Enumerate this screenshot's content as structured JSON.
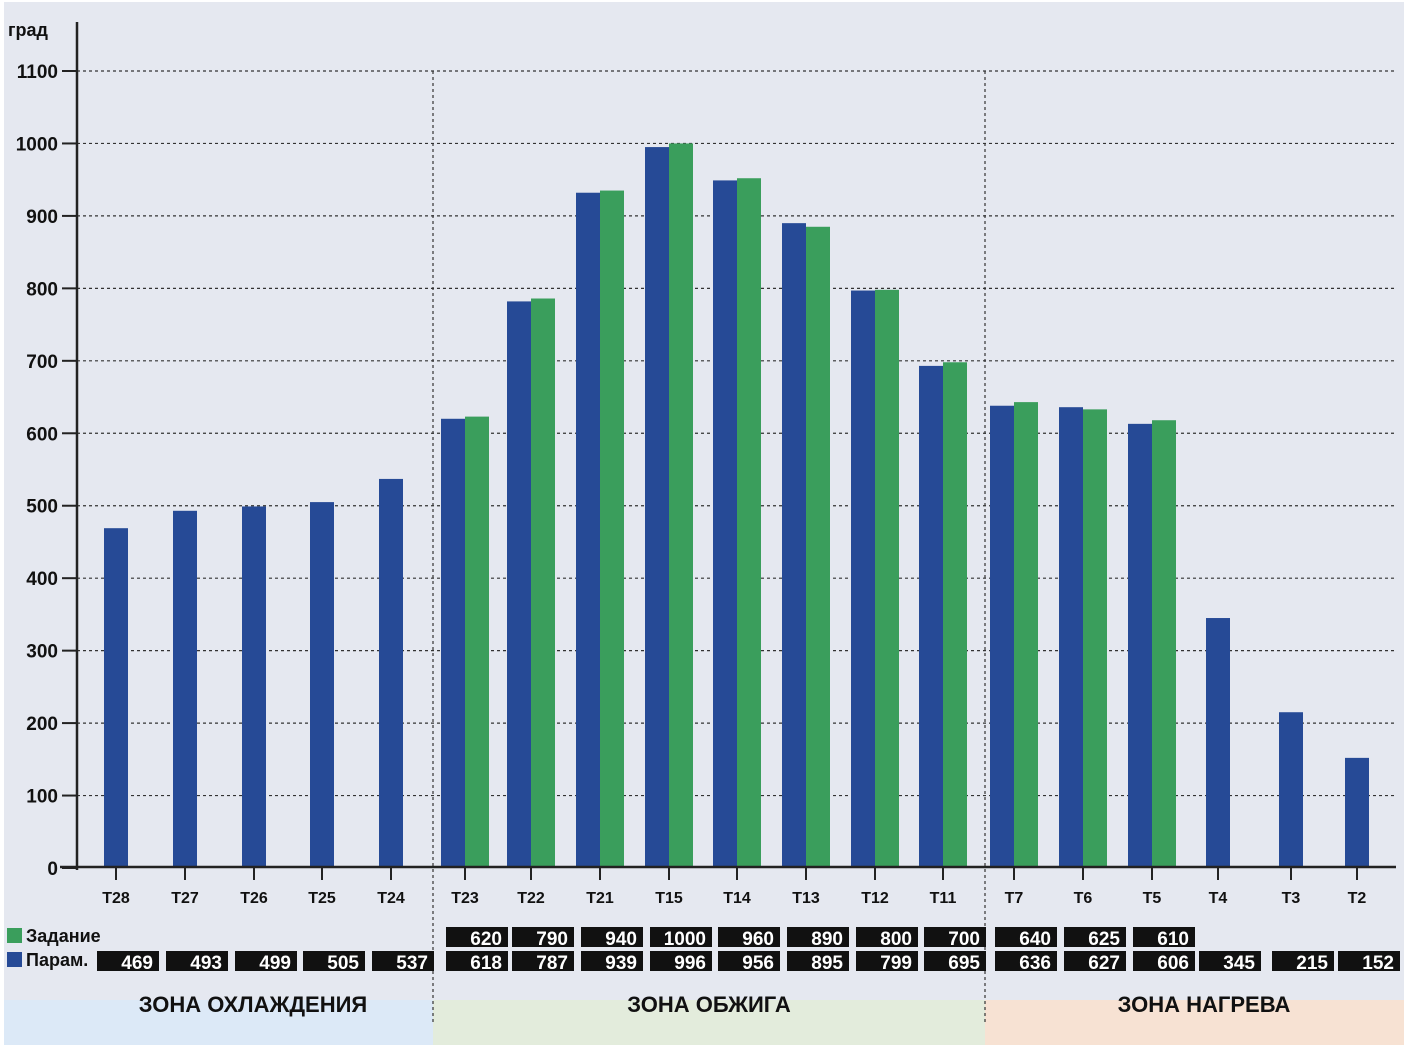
{
  "chart_data": {
    "type": "bar",
    "ylabel": "град",
    "ylim": [
      0,
      1100
    ],
    "yticks": [
      0,
      100,
      200,
      300,
      400,
      500,
      600,
      700,
      800,
      900,
      1000,
      1100
    ],
    "grid": true,
    "categories": [
      "T28",
      "T27",
      "T26",
      "T25",
      "T24",
      "T23",
      "T22",
      "T21",
      "T15",
      "T14",
      "T13",
      "T12",
      "T11",
      "T7",
      "T6",
      "T5",
      "T4",
      "T3",
      "T2"
    ],
    "series": [
      {
        "name": "Парам.",
        "color": "#264a96",
        "values": [
          469,
          493,
          499,
          505,
          537,
          618,
          787,
          939,
          996,
          956,
          895,
          799,
          695,
          636,
          627,
          606,
          345,
          215,
          152
        ],
        "bar_values": [
          469,
          493,
          499,
          505,
          537,
          620,
          782,
          932,
          995,
          949,
          890,
          797,
          693,
          638,
          636,
          613,
          345,
          215,
          152
        ]
      },
      {
        "name": "Задание",
        "color": "#3a9e5c",
        "values": [
          null,
          null,
          null,
          null,
          null,
          620,
          790,
          940,
          1000,
          960,
          890,
          800,
          700,
          640,
          625,
          610,
          null,
          null,
          null
        ],
        "bar_values": [
          null,
          null,
          null,
          null,
          null,
          623,
          786,
          935,
          1000,
          952,
          885,
          798,
          698,
          643,
          633,
          618,
          null,
          null,
          null
        ]
      }
    ],
    "zones": [
      {
        "label": "ЗОНА ОХЛАЖДЕНИЯ",
        "color": "#dce9f7",
        "from": 0,
        "to": 4
      },
      {
        "label": "ЗОНА ОБЖИГА",
        "color": "#e3ecdc",
        "from": 5,
        "to": 12
      },
      {
        "label": "ЗОНА НАГРЕВА",
        "color": "#f7e2d3",
        "from": 13,
        "to": 18
      }
    ],
    "legend": [
      {
        "label": "Задание",
        "color": "#3a9e5c"
      },
      {
        "label": "Парам.",
        "color": "#264a96"
      }
    ]
  }
}
